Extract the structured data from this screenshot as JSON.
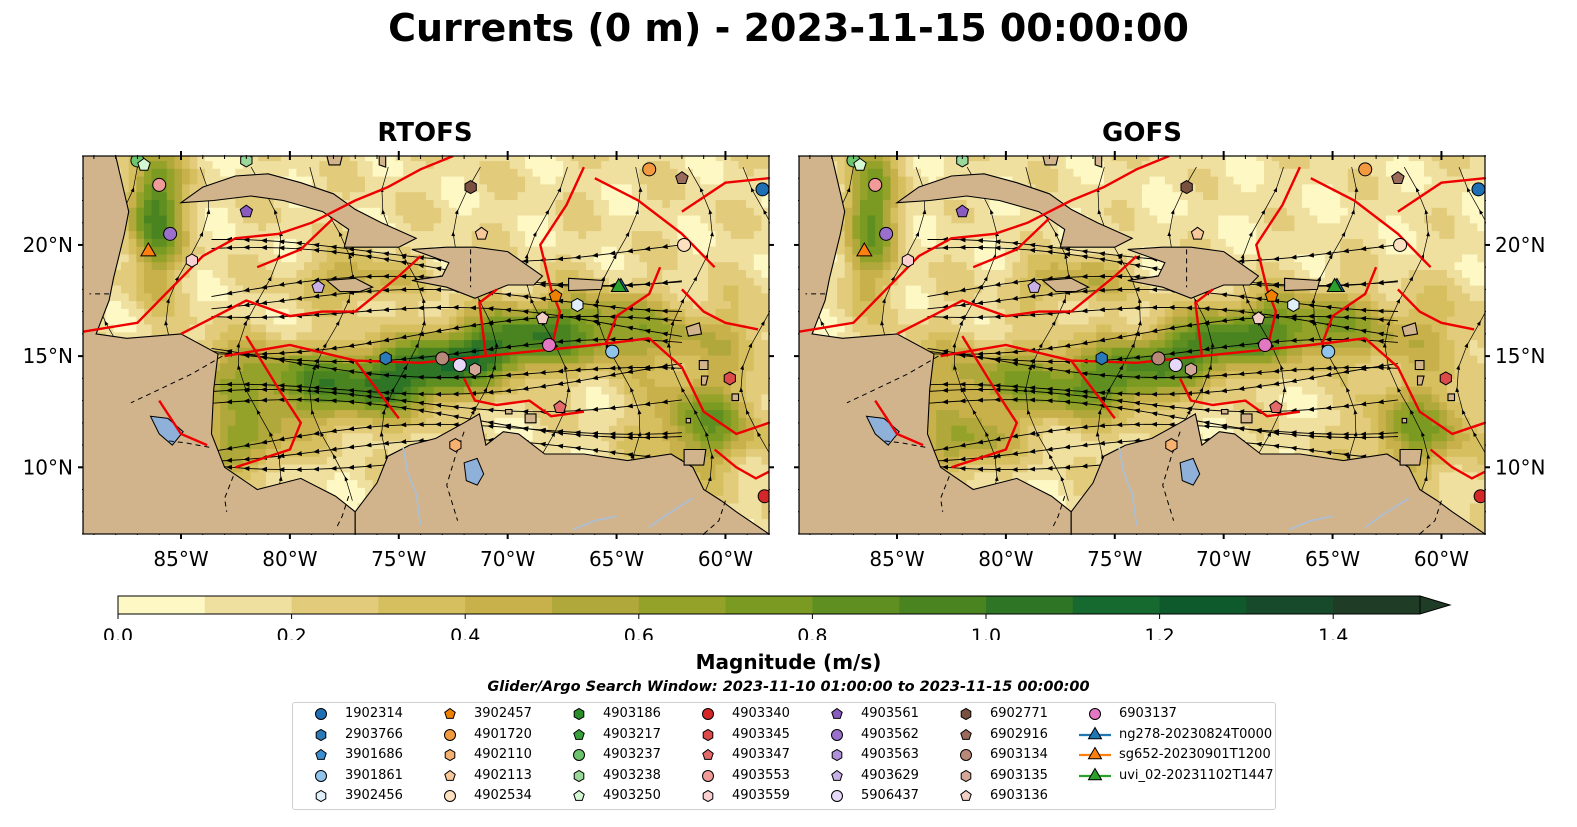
{
  "title": "Currents (0 m) - 2023-11-15 00:00:00",
  "panels": [
    {
      "title": "RTOFS"
    },
    {
      "title": "GOFS"
    }
  ],
  "axes": {
    "lon_range": [
      -89.5,
      -58.0
    ],
    "lat_range": [
      7.0,
      24.0
    ],
    "lon_ticks": [
      "85°W",
      "80°W",
      "75°W",
      "70°W",
      "65°W",
      "60°W"
    ],
    "lat_ticks": [
      "20°N",
      "15°N",
      "10°N"
    ]
  },
  "colorbar": {
    "label": "Magnitude (m/s)",
    "ticks": [
      "0.0",
      "0.2",
      "0.4",
      "0.6",
      "0.8",
      "1.0",
      "1.2",
      "1.4"
    ],
    "range": [
      0.0,
      1.5
    ],
    "extend": "max",
    "colors": [
      "#fdf8c4",
      "#f0e0a0",
      "#e2cc7c",
      "#d6bf5e",
      "#c8b14a",
      "#b0a83a",
      "#94a22a",
      "#7a9a22",
      "#5f8f20",
      "#4a8420",
      "#2f7526",
      "#166a30",
      "#0e5a2c",
      "#174a2a",
      "#1f3c26"
    ]
  },
  "colors": {
    "land": "#d2b48c",
    "lakes": "#8fb0d8",
    "eez": "#ee0000",
    "coast": "#000000"
  },
  "search_window": "Glider/Argo Search Window: 2023-11-10 01:00:00 to 2023-11-15 00:00:00",
  "legend": [
    {
      "label": "1902314",
      "marker": "circle",
      "color": "#1f6fb4"
    },
    {
      "label": "2903766",
      "marker": "hexagon",
      "color": "#2a7ab8"
    },
    {
      "label": "3901686",
      "marker": "pentagon",
      "color": "#3b8fd0"
    },
    {
      "label": "3901861",
      "marker": "circle",
      "color": "#90c4ea"
    },
    {
      "label": "3902456",
      "marker": "hexagon",
      "color": "#dff0fb"
    },
    {
      "label": "3902457",
      "marker": "pentagon",
      "color": "#f08000"
    },
    {
      "label": "4901720",
      "marker": "circle",
      "color": "#f39a40"
    },
    {
      "label": "4902110",
      "marker": "hexagon",
      "color": "#f6b070"
    },
    {
      "label": "4902113",
      "marker": "pentagon",
      "color": "#f8c89a"
    },
    {
      "label": "4902534",
      "marker": "circle",
      "color": "#fde0c0"
    },
    {
      "label": "4903186",
      "marker": "hexagon",
      "color": "#2a8f2a"
    },
    {
      "label": "4903217",
      "marker": "pentagon",
      "color": "#3aa03a"
    },
    {
      "label": "4903237",
      "marker": "circle",
      "color": "#6cc46c"
    },
    {
      "label": "4903238",
      "marker": "hexagon",
      "color": "#9ad89a"
    },
    {
      "label": "4903250",
      "marker": "pentagon",
      "color": "#d4f7d4"
    },
    {
      "label": "4903340",
      "marker": "circle",
      "color": "#d62728"
    },
    {
      "label": "4903345",
      "marker": "hexagon",
      "color": "#dd4a4a"
    },
    {
      "label": "4903347",
      "marker": "pentagon",
      "color": "#e46a6a"
    },
    {
      "label": "4903553",
      "marker": "circle",
      "color": "#f09a9a"
    },
    {
      "label": "4903559",
      "marker": "hexagon",
      "color": "#fad0d0"
    },
    {
      "label": "4903561",
      "marker": "pentagon",
      "color": "#8a5cc0"
    },
    {
      "label": "4903562",
      "marker": "circle",
      "color": "#9a70cc"
    },
    {
      "label": "4903563",
      "marker": "hexagon",
      "color": "#b090d8"
    },
    {
      "label": "4903629",
      "marker": "pentagon",
      "color": "#c8b0e6"
    },
    {
      "label": "5906437",
      "marker": "circle",
      "color": "#e6d8f8"
    },
    {
      "label": "6902771",
      "marker": "hexagon",
      "color": "#7a5040"
    },
    {
      "label": "6902916",
      "marker": "pentagon",
      "color": "#9a6a5a"
    },
    {
      "label": "6903134",
      "marker": "circle",
      "color": "#b88878"
    },
    {
      "label": "6903135",
      "marker": "hexagon",
      "color": "#d4a898"
    },
    {
      "label": "6903136",
      "marker": "pentagon",
      "color": "#f2cfc4"
    },
    {
      "label": "6903137",
      "marker": "circle",
      "color": "#e377c2"
    },
    {
      "label": "ng278-20230824T0000",
      "marker": "triangle",
      "color": "#1f77b4",
      "line": true
    },
    {
      "label": "sg652-20230901T1200",
      "marker": "triangle",
      "color": "#ff7f0e",
      "line": true
    },
    {
      "label": "uvi_02-20231102T1447",
      "marker": "triangle",
      "color": "#2ca02c",
      "line": true
    }
  ],
  "platforms": [
    {
      "id": "1902314",
      "lon": -58.3,
      "lat": 22.5
    },
    {
      "id": "4903340",
      "lon": -58.2,
      "lat": 8.7
    },
    {
      "id": "3901861",
      "lon": -65.2,
      "lat": 15.2
    },
    {
      "id": "2903766",
      "lon": -75.6,
      "lat": 14.9
    },
    {
      "id": "3902456",
      "lon": -66.8,
      "lat": 17.3
    },
    {
      "id": "3902457",
      "lon": -67.8,
      "lat": 17.7
    },
    {
      "id": "4903345",
      "lon": -59.8,
      "lat": 14.0
    },
    {
      "id": "4903553",
      "lon": -86.0,
      "lat": 22.7
    },
    {
      "id": "4903237",
      "lon": -87.0,
      "lat": 23.8
    },
    {
      "id": "4903250",
      "lon": -86.7,
      "lat": 23.6
    },
    {
      "id": "4903238",
      "lon": -82.0,
      "lat": 23.8
    },
    {
      "id": "4903562",
      "lon": -85.5,
      "lat": 20.5
    },
    {
      "id": "4903559",
      "lon": -84.5,
      "lat": 19.3
    },
    {
      "id": "4903561",
      "lon": -82.0,
      "lat": 21.5
    },
    {
      "id": "4903629",
      "lon": -78.7,
      "lat": 18.1
    },
    {
      "id": "6902771",
      "lon": -71.7,
      "lat": 22.6
    },
    {
      "id": "6902916",
      "lon": -62.0,
      "lat": 23.0
    },
    {
      "id": "4901720",
      "lon": -63.5,
      "lat": 23.4
    },
    {
      "id": "4902113",
      "lon": -71.2,
      "lat": 20.5
    },
    {
      "id": "4902534",
      "lon": -61.9,
      "lat": 20.0
    },
    {
      "id": "6903134",
      "lon": -73.0,
      "lat": 14.9
    },
    {
      "id": "5906437",
      "lon": -72.2,
      "lat": 14.6
    },
    {
      "id": "6903135",
      "lon": -71.5,
      "lat": 14.4
    },
    {
      "id": "6903137",
      "lon": -68.1,
      "lat": 15.5
    },
    {
      "id": "6903136",
      "lon": -68.4,
      "lat": 16.7
    },
    {
      "id": "4903347",
      "lon": -67.6,
      "lat": 12.7
    },
    {
      "id": "4902110",
      "lon": -72.4,
      "lat": 11.0
    },
    {
      "id": "ng278-20230824T0000",
      "lon": -64.8,
      "lat": 18.1
    },
    {
      "id": "sg652-20230901T1200",
      "lon": -86.5,
      "lat": 19.7
    },
    {
      "id": "uvi_02-20231102T1447",
      "lon": -64.9,
      "lat": 18.1
    }
  ]
}
